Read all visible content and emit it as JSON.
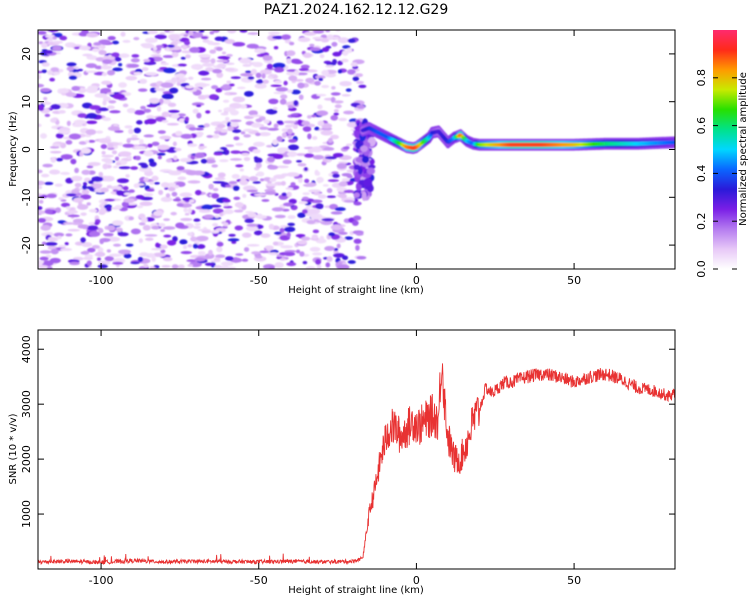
{
  "title": "PAZ1.2024.162.12.12.G29",
  "colors": {
    "snr_line": "#e83232",
    "colormap": [
      "#ffffff",
      "#e7c8f7",
      "#b57cf0",
      "#7a1fe6",
      "#2a1ad9",
      "#0a66ff",
      "#00d7ff",
      "#00e28a",
      "#27e000",
      "#c8ea00",
      "#ff9a00",
      "#ff2a1a",
      "#ff2a6e"
    ]
  },
  "chart_data": [
    {
      "type": "heatmap",
      "xlabel": "Height of straight line (km)",
      "ylabel": "Frequency (Hz)",
      "xlim": [
        -120,
        82
      ],
      "ylim": [
        -25,
        25
      ],
      "xticks": [
        -100,
        -50,
        0,
        50
      ],
      "yticks": [
        -20,
        -10,
        0,
        10,
        20
      ],
      "colorbar": {
        "label": "Normalized spectral amplitude",
        "range": [
          0.0,
          1.0
        ],
        "ticks": [
          0.0,
          0.2,
          0.4,
          0.6,
          0.8
        ]
      },
      "ridge": {
        "x": [
          -17,
          -15,
          -12,
          -9,
          -6,
          -3,
          -1,
          0,
          2,
          4,
          5,
          7,
          10,
          12,
          14,
          16,
          18,
          20,
          30,
          40,
          50,
          60,
          70,
          82
        ],
        "frequency": [
          4,
          4.5,
          3.5,
          2.5,
          1.5,
          0.5,
          0.3,
          0.5,
          1.5,
          2.5,
          3.5,
          3.8,
          1.5,
          2.5,
          3.0,
          1.8,
          1.2,
          1.0,
          1.0,
          1.0,
          1.0,
          1.2,
          1.2,
          1.5
        ],
        "amplitude": [
          0.3,
          0.35,
          0.4,
          0.4,
          0.6,
          0.85,
          0.9,
          0.9,
          0.7,
          0.5,
          0.35,
          0.3,
          0.35,
          0.45,
          0.9,
          0.5,
          0.4,
          0.7,
          0.9,
          0.9,
          0.8,
          0.6,
          0.5,
          0.4
        ]
      },
      "noise": {
        "x_range": [
          -120,
          -17
        ],
        "amplitude_range": [
          0.05,
          0.35
        ]
      }
    },
    {
      "type": "line",
      "xlabel": "Height of straight line (km)",
      "ylabel": "SNR (10 * v/v)",
      "xlim": [
        -120,
        82
      ],
      "ylim": [
        0,
        4350
      ],
      "xticks": [
        -100,
        -50,
        0,
        50
      ],
      "yticks": [
        1000,
        2000,
        3000,
        4000
      ],
      "series": [
        {
          "x": [
            -120,
            -110,
            -100,
            -90,
            -80,
            -70,
            -60,
            -50,
            -40,
            -30,
            -20,
            -17,
            -15,
            -13,
            -11,
            -9,
            -7,
            -5,
            -3,
            -1,
            1,
            3,
            5,
            7,
            8,
            9,
            10,
            12,
            14,
            16,
            18,
            20,
            22,
            24,
            26,
            28,
            30,
            35,
            40,
            45,
            50,
            55,
            60,
            65,
            70,
            75,
            80,
            82
          ],
          "y": [
            130,
            140,
            120,
            150,
            130,
            140,
            135,
            130,
            140,
            130,
            140,
            200,
            1000,
            1500,
            2100,
            2500,
            2600,
            2400,
            2550,
            2700,
            2600,
            2700,
            2800,
            2700,
            3900,
            3000,
            2400,
            2000,
            2000,
            2300,
            2700,
            2900,
            3300,
            3200,
            3300,
            3400,
            3400,
            3500,
            3550,
            3500,
            3400,
            3500,
            3550,
            3450,
            3300,
            3250,
            3150,
            3200
          ]
        }
      ]
    }
  ]
}
